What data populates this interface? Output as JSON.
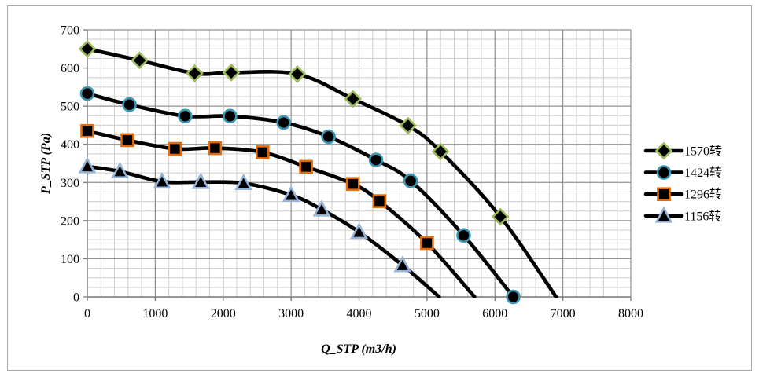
{
  "chart_data": {
    "type": "line",
    "title": "",
    "xlabel": "Q_STP (m3/h)",
    "ylabel": "P_STP (Pa)",
    "xlim": [
      0,
      8000
    ],
    "ylim": [
      0,
      700
    ],
    "x_major": 1000,
    "x_minor": 200,
    "y_major": 100,
    "y_minor": 25,
    "x_ticks": [
      0,
      1000,
      2000,
      3000,
      4000,
      5000,
      6000,
      7000,
      8000
    ],
    "y_ticks": [
      0,
      100,
      200,
      300,
      400,
      500,
      600,
      700
    ],
    "grid": "major+minor",
    "legend_position": "right",
    "colors": {
      "line": "#000000",
      "major_grid": "#909090",
      "minor_grid": "#cdcdcd",
      "axis": "#7f7f7f",
      "text": "#000000"
    },
    "series": [
      {
        "name": "1570转",
        "marker": "diamond",
        "marker_fill": "#000000",
        "marker_outline": "#9BBB59",
        "end_marker": false,
        "points": [
          [
            0,
            650
          ],
          [
            770,
            620
          ],
          [
            1580,
            586
          ],
          [
            2120,
            588
          ],
          [
            3090,
            584
          ],
          [
            3910,
            519
          ],
          [
            4720,
            449
          ],
          [
            5200,
            381
          ],
          [
            6080,
            210
          ],
          [
            6900,
            0
          ]
        ]
      },
      {
        "name": "1424转",
        "marker": "circle",
        "marker_fill": "#000000",
        "marker_outline": "#3C96B4",
        "end_marker": true,
        "points": [
          [
            0,
            533
          ],
          [
            620,
            504
          ],
          [
            1440,
            474
          ],
          [
            2100,
            474
          ],
          [
            2890,
            457
          ],
          [
            3550,
            420
          ],
          [
            4250,
            359
          ],
          [
            4760,
            304
          ],
          [
            5540,
            161
          ],
          [
            6270,
            0
          ]
        ]
      },
      {
        "name": "1296转",
        "marker": "square",
        "marker_fill": "#000000",
        "marker_outline": "#E36C09",
        "end_marker": false,
        "points": [
          [
            0,
            435
          ],
          [
            590,
            411
          ],
          [
            1290,
            388
          ],
          [
            1880,
            390
          ],
          [
            2580,
            379
          ],
          [
            3220,
            341
          ],
          [
            3910,
            296
          ],
          [
            4300,
            251
          ],
          [
            5000,
            141
          ],
          [
            5700,
            0
          ]
        ]
      },
      {
        "name": "1156转",
        "marker": "triangle",
        "marker_fill": "#000000",
        "marker_outline": "#95B3D7",
        "end_marker": false,
        "points": [
          [
            0,
            342
          ],
          [
            480,
            329
          ],
          [
            1100,
            302
          ],
          [
            1670,
            301
          ],
          [
            2300,
            298
          ],
          [
            3000,
            267
          ],
          [
            3450,
            229
          ],
          [
            4000,
            170
          ],
          [
            4640,
            83
          ],
          [
            5180,
            0
          ]
        ]
      }
    ]
  }
}
